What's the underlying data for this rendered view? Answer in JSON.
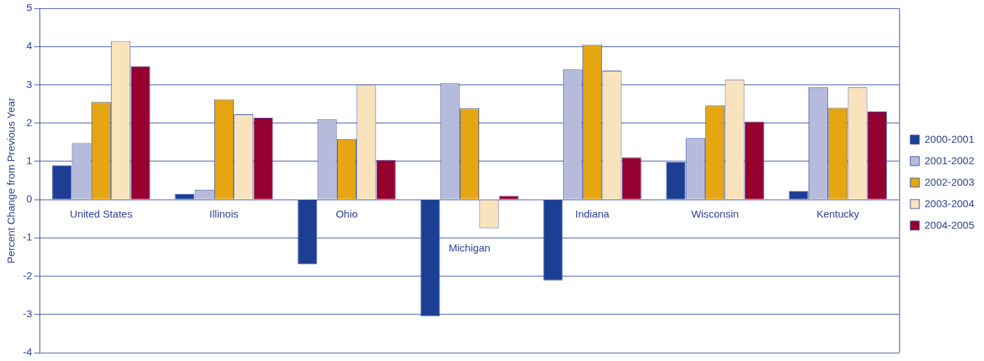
{
  "chart_data": {
    "type": "bar",
    "ylabel": "Percent Change from Previous Year",
    "categories": [
      "United States",
      "Illinois",
      "Ohio",
      "Michigan",
      "Indiana",
      "Wisconsin",
      "Kentucky"
    ],
    "series": [
      {
        "name": "2000-2001",
        "color": "#1c3f94",
        "values": [
          0.9,
          0.15,
          -1.69,
          -3.05,
          -2.11,
          0.98,
          0.23
        ]
      },
      {
        "name": "2001-2002",
        "color": "#b7bbdb",
        "values": [
          1.48,
          0.26,
          2.1,
          3.04,
          3.4,
          1.61,
          2.94
        ]
      },
      {
        "name": "2002-2003",
        "color": "#e5a612",
        "values": [
          2.55,
          2.62,
          1.58,
          2.39,
          4.05,
          2.46,
          2.4
        ]
      },
      {
        "name": "2003-2004",
        "color": "#f8e3bd",
        "values": [
          4.14,
          2.23,
          3.01,
          -0.75,
          3.37,
          3.14,
          2.94
        ]
      },
      {
        "name": "2004-2005",
        "color": "#960030",
        "values": [
          3.49,
          2.14,
          1.04,
          0.1,
          1.1,
          2.04,
          2.3
        ]
      }
    ],
    "ylim": [
      -4,
      5
    ],
    "yticks": [
      -4,
      -3,
      -2,
      -1,
      0,
      1,
      2,
      3,
      4,
      5
    ],
    "grid": "y",
    "legend": "right"
  }
}
